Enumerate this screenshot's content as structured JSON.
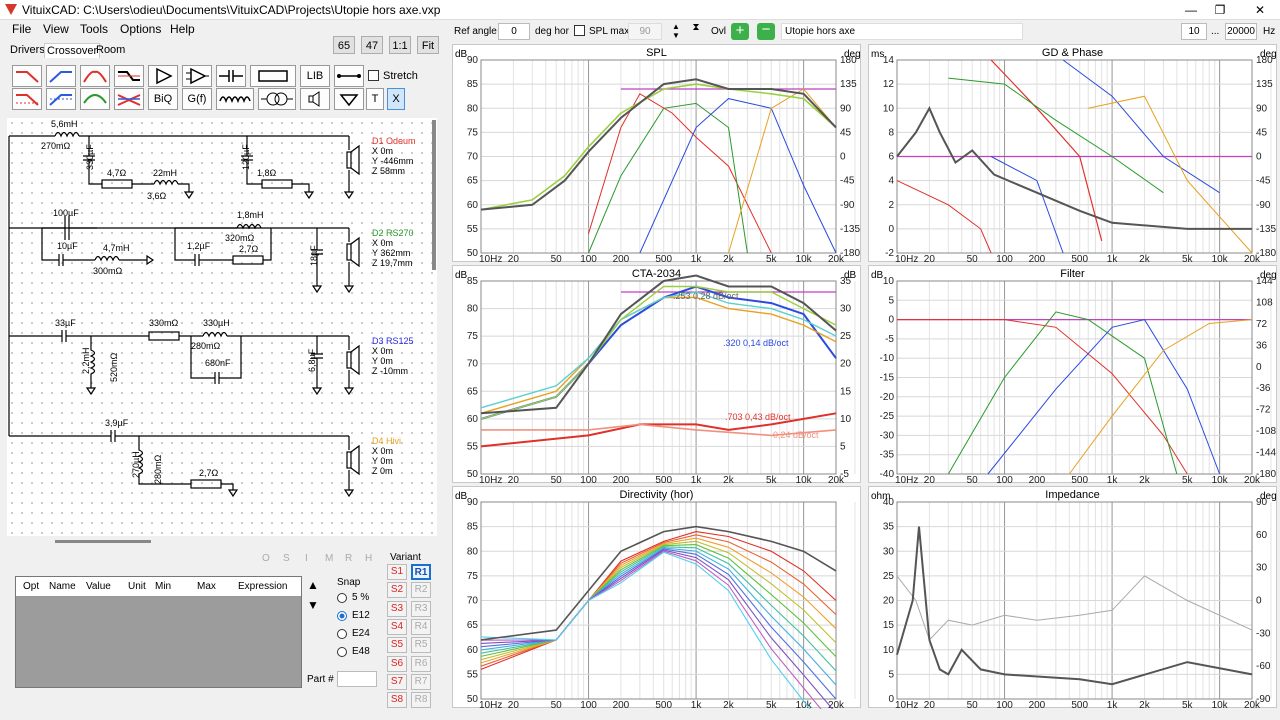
{
  "window": {
    "title": "VituixCAD: C:\\Users\\odieu\\Documents\\VituixCAD\\Projects\\Utopie hors axe.vxp"
  },
  "menu": [
    "File",
    "View",
    "Tools",
    "Options",
    "Help"
  ],
  "tabs": [
    "Drivers",
    "Crossover",
    "Room"
  ],
  "zoom": {
    "b1": "65",
    "b2": "47",
    "b3": "1:1",
    "b4": "Fit"
  },
  "toolbar": {
    "lib": "LIB",
    "biq": "BiQ",
    "gf": "G(f)",
    "t": "T",
    "x": "X",
    "stretch": "Stretch"
  },
  "top": {
    "ref_angle_label": "Ref angle",
    "ref_angle": "0",
    "deg_hor": "deg hor",
    "spl_max": "SPL max",
    "spl_val": "90",
    "ovl": "Ovl",
    "project": "Utopie hors axe",
    "f_lo": "10",
    "dots": "...",
    "f_hi": "20000",
    "hz": "Hz"
  },
  "schematic": {
    "c1": [
      "5,6mH",
      "270mΩ",
      "330µF",
      "4,7Ω",
      "22mH",
      "3,6Ω",
      "120µF",
      "1,8Ω"
    ],
    "c2": [
      "100µF",
      "10µF",
      "4,7mH",
      "300mΩ",
      "1,2µF",
      "1,8mH",
      "320mΩ",
      "2,7Ω",
      "18µF"
    ],
    "c3": [
      "33µF",
      "330mΩ",
      "330µH",
      "280mΩ",
      "2,2mH",
      "520mΩ",
      "680nF",
      "6,8µF"
    ],
    "c4": [
      "3,9µF",
      "270µH",
      "280mΩ",
      "2,7Ω"
    ],
    "drivers": [
      {
        "name": "D1 Odeum",
        "x": "X 0m",
        "y": "Y -446mm",
        "z": "Z 58mm",
        "color": "#e0302a"
      },
      {
        "name": "D2 RS270",
        "x": "X 0m",
        "y": "Y 362mm",
        "z": "Z 19,7mm",
        "color": "#2a9a2a"
      },
      {
        "name": "D3 RS125",
        "x": "X 0m",
        "y": "Y 0m",
        "z": "Z -10mm",
        "color": "#2a2ae0"
      },
      {
        "name": "D4 Hivi",
        "x": "X 0m",
        "y": "Y 0m",
        "z": "Z 0m",
        "color": "#e8a020"
      }
    ]
  },
  "params": {
    "headers": [
      "Opt",
      "Name",
      "Value",
      "Unit",
      "Min",
      "Max",
      "Expression"
    ],
    "flags": [
      "O",
      "S",
      "I",
      "M",
      "R",
      "H"
    ],
    "snap": "Snap",
    "snap_opts": [
      "5 %",
      "E12",
      "E24",
      "E48"
    ],
    "part": "Part #",
    "variant": "Variant",
    "variants_s": [
      "S1",
      "S2",
      "S3",
      "S4",
      "S5",
      "S6",
      "S7",
      "S8"
    ],
    "variants_r": [
      "R1",
      "R2",
      "R3",
      "R4",
      "R5",
      "R6",
      "R7",
      "R8"
    ]
  },
  "charts": {
    "spl": {
      "title": "SPL",
      "lu": "dB",
      "ru": "deg",
      "left": [
        "90",
        "85",
        "80",
        "75",
        "70",
        "65",
        "60",
        "55",
        "50"
      ],
      "right": [
        "180",
        "135",
        "90",
        "45",
        "0",
        "-45",
        "-90",
        "-135",
        "-180"
      ]
    },
    "gd": {
      "title": "GD & Phase",
      "lu": "ms",
      "ru": "deg",
      "left": [
        "14",
        "12",
        "10",
        "8",
        "6",
        "4",
        "2",
        "0",
        "-2"
      ],
      "right": [
        "180",
        "135",
        "90",
        "45",
        "0",
        "-45",
        "-90",
        "-135",
        "-180"
      ]
    },
    "cta": {
      "title": "CTA-2034",
      "lu": "dB",
      "ru": "dB",
      "left": [
        "85",
        "80",
        "75",
        "70",
        "65",
        "60",
        "55",
        "50"
      ],
      "right": [
        "35",
        "30",
        "25",
        "20",
        "15",
        "10",
        "5",
        "-5"
      ],
      "ann": [
        ".253  0,28 dB/oct",
        ".320  0,14 dB/oct",
        ".703  0,43 dB/oct",
        "0,24 dB/oct"
      ]
    },
    "filter": {
      "title": "Filter",
      "lu": "dB",
      "ru": "deg",
      "left": [
        "10",
        "5",
        "0",
        "-5",
        "-10",
        "-15",
        "-20",
        "-25",
        "-30",
        "-35",
        "-40"
      ],
      "right": [
        "144",
        "108",
        "72",
        "36",
        "0",
        "-36",
        "-72",
        "-108",
        "-144",
        "-180"
      ]
    },
    "dir": {
      "title": "Directivity (hor)",
      "lu": "dB",
      "left": [
        "90",
        "85",
        "80",
        "75",
        "70",
        "65",
        "60",
        "55",
        "50"
      ]
    },
    "imp": {
      "title": "Impedance",
      "lu": "ohm",
      "ru": "deg",
      "left": [
        "40",
        "35",
        "30",
        "25",
        "20",
        "15",
        "10",
        "5",
        "0"
      ],
      "right": [
        "90",
        "60",
        "30",
        "0",
        "-30",
        "-60",
        "-90"
      ]
    },
    "freq": [
      "10Hz",
      "20",
      "50",
      "100",
      "200",
      "500",
      "1k",
      "2k",
      "5k",
      "10k",
      "20k"
    ]
  }
}
